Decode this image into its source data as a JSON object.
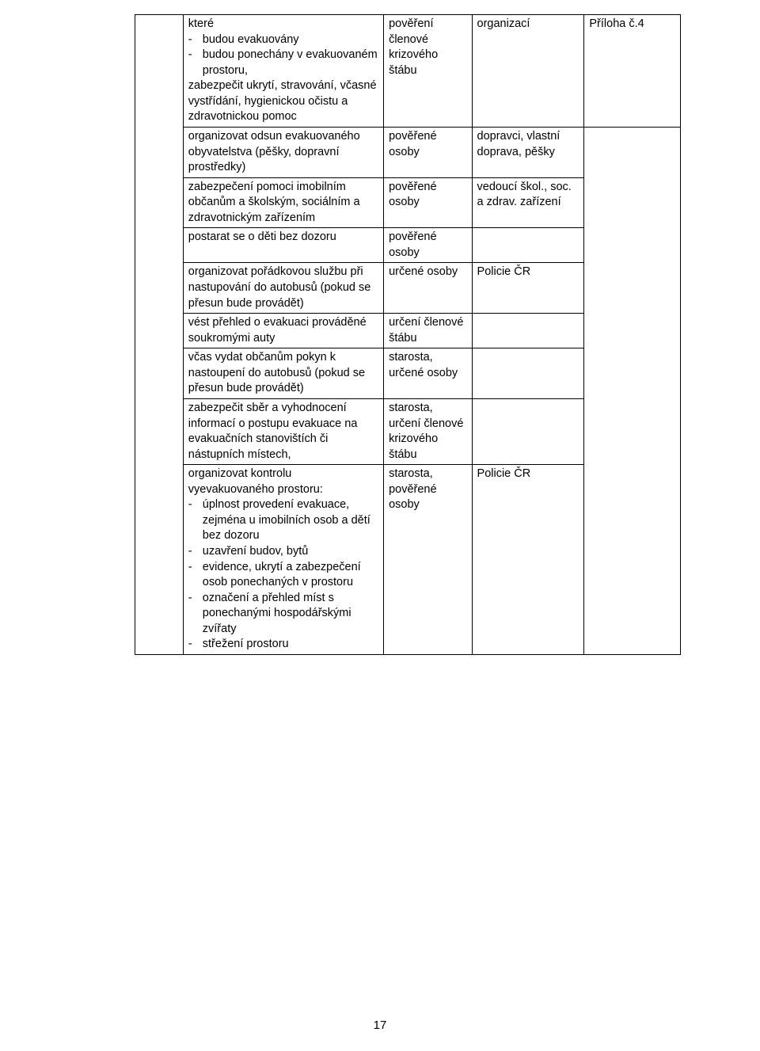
{
  "page_number": "17",
  "colors": {
    "border": "#000000",
    "text": "#000000",
    "background": "#ffffff"
  },
  "rows": [
    {
      "c2_pre": "které",
      "c2_items": [
        "budou evakuovány",
        "budou ponechány v evakuovaném prostoru,"
      ],
      "c2_post": "zabezpečit ukrytí, stravování, včasné vystřídání, hygienickou očistu a zdravotnickou pomoc",
      "c3": "pověření členové krizového štábu",
      "c4": "organizací",
      "c5": "Příloha č.4"
    },
    {
      "c2": "organizovat odsun evakuovaného obyvatelstva (pěšky, dopravní prostředky)",
      "c3": "pověřené osoby",
      "c4": "dopravci, vlastní doprava, pěšky"
    },
    {
      "c2": "zabezpečení pomoci imobilním občanům a školským, sociálním a zdravotnickým zařízením",
      "c3": "pověřené osoby",
      "c4": "vedoucí škol., soc. a zdrav. zařízení"
    },
    {
      "c2": "postarat se o děti bez dozoru",
      "c3": "pověřené osoby",
      "c4": ""
    },
    {
      "c2": "organizovat pořádkovou službu při nastupování do autobusů  (pokud se přesun bude provádět)",
      "c3": "určené osoby",
      "c4": "Policie ČR"
    },
    {
      "c2": "vést přehled o evakuaci prováděné soukromými auty",
      "c3": "určení členové štábu",
      "c4": ""
    },
    {
      "c2": "včas vydat občanům pokyn k  nastoupení do autobusů (pokud se přesun bude provádět)",
      "c3": "starosta, určené osoby",
      "c4": ""
    },
    {
      "c2": "zabezpečit sběr a vyhodnocení informací o postupu evakuace na evakuačních stanovištích či nástupních  místech,",
      "c3": "starosta, určení členové krizového štábu",
      "c4": ""
    },
    {
      "c2_pre": "organizovat kontrolu vyevakuovaného prostoru:",
      "c2_items": [
        "úplnost provedení evakuace, zejména u imobilních osob a dětí bez dozoru",
        "uzavření budov, bytů",
        "evidence, ukrytí a zabezpečení osob ponechaných v prostoru",
        "označení a přehled míst s ponechanými hospodářskými zvířaty",
        "střežení prostoru"
      ],
      "c3": "starosta, pověřené osoby",
      "c4": "Policie ČR"
    }
  ]
}
